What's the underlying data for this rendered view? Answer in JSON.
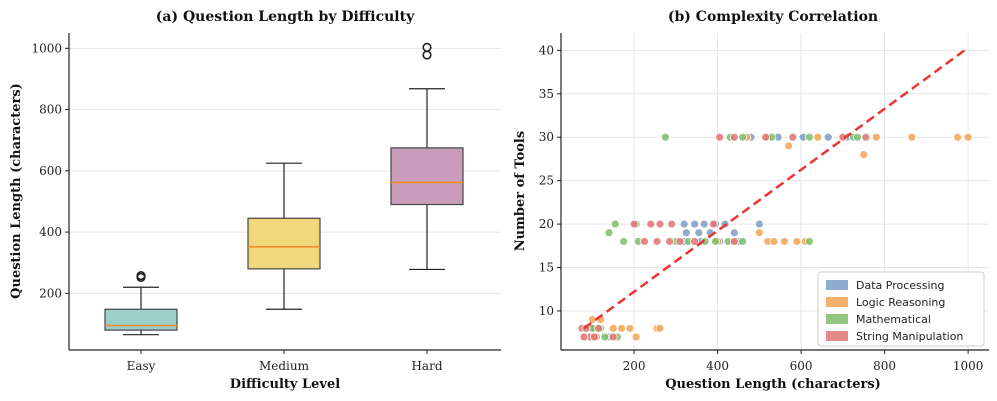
{
  "chart_data": [
    {
      "type": "box",
      "title": "(a) Question Length by Difficulty",
      "xlabel": "Difficulty Level",
      "ylabel": "Question Length (characters)",
      "ylim": [
        15,
        1050
      ],
      "yticks": [
        200,
        400,
        600,
        800,
        1000
      ],
      "grid": true,
      "categories": [
        "Easy",
        "Medium",
        "Hard"
      ],
      "boxes": [
        {
          "name": "Easy",
          "whisker_low": 65,
          "q1": 80,
          "median": 95,
          "q3": 148,
          "whisker_high": 220,
          "outliers": [
            252,
            258
          ],
          "color": "#9ecfc8"
        },
        {
          "name": "Medium",
          "whisker_low": 148,
          "q1": 280,
          "median": 352,
          "q3": 445,
          "whisker_high": 625,
          "outliers": [],
          "color": "#f2d77c"
        },
        {
          "name": "Hard",
          "whisker_low": 278,
          "q1": 490,
          "median": 562,
          "q3": 675,
          "whisker_high": 868,
          "outliers": [
            978,
            1003
          ],
          "color": "#c99cbb"
        }
      ]
    },
    {
      "type": "scatter",
      "title": "(b) Complexity Correlation",
      "xlabel": "Question Length (characters)",
      "ylabel": "Number of Tools",
      "xlim": [
        25,
        1050
      ],
      "ylim": [
        5.5,
        42
      ],
      "xticks": [
        200,
        400,
        600,
        800,
        1000
      ],
      "yticks": [
        10,
        15,
        20,
        25,
        30,
        35,
        40
      ],
      "grid": true,
      "legend_position": "bottom-right",
      "trend_line": {
        "x": [
          80,
          1000
        ],
        "y": [
          8.0,
          40.3
        ],
        "color": "#ee3333"
      },
      "series": [
        {
          "name": "Data Processing",
          "color": "#7b9cc6",
          "points": [
            [
              320,
              20
            ],
            [
              345,
              20
            ],
            [
              368,
              20
            ],
            [
              395,
              20
            ],
            [
              418,
              20
            ],
            [
              500,
              20
            ],
            [
              325,
              19
            ],
            [
              355,
              19
            ],
            [
              382,
              19
            ],
            [
              440,
              19
            ],
            [
              320,
              18
            ],
            [
              360,
              18
            ],
            [
              405,
              18
            ],
            [
              450,
              18
            ],
            [
              605,
              30
            ],
            [
              665,
              30
            ],
            [
              710,
              30
            ],
            [
              545,
              30
            ],
            [
              480,
              30
            ],
            [
              95,
              8
            ],
            [
              140,
              7
            ]
          ]
        },
        {
          "name": "Logic Reasoning",
          "color": "#f4a356",
          "points": [
            [
              780,
              30
            ],
            [
              865,
              30
            ],
            [
              975,
              30
            ],
            [
              1000,
              30
            ],
            [
              520,
              30
            ],
            [
              470,
              30
            ],
            [
              640,
              30
            ],
            [
              500,
              19
            ],
            [
              560,
              18
            ],
            [
              590,
              18
            ],
            [
              520,
              18
            ],
            [
              535,
              18
            ],
            [
              610,
              18
            ],
            [
              750,
              28
            ],
            [
              570,
              29
            ],
            [
              435,
              18
            ],
            [
              400,
              18
            ],
            [
              100,
              9
            ],
            [
              120,
              9
            ],
            [
              150,
              8
            ],
            [
              170,
              8
            ],
            [
              190,
              8
            ],
            [
              255,
              8
            ],
            [
              262,
              8
            ],
            [
              110,
              7
            ],
            [
              205,
              7
            ]
          ]
        },
        {
          "name": "Mathematical",
          "color": "#7fbd6c",
          "points": [
            [
              275,
              30
            ],
            [
              430,
              30
            ],
            [
              460,
              30
            ],
            [
              530,
              30
            ],
            [
              620,
              30
            ],
            [
              725,
              30
            ],
            [
              735,
              30
            ],
            [
              155,
              20
            ],
            [
              205,
              20
            ],
            [
              140,
              19
            ],
            [
              175,
              18
            ],
            [
              210,
              18
            ],
            [
              300,
              18
            ],
            [
              330,
              18
            ],
            [
              370,
              18
            ],
            [
              395,
              18
            ],
            [
              425,
              18
            ],
            [
              460,
              18
            ],
            [
              620,
              18
            ],
            [
              105,
              8
            ],
            [
              120,
              8
            ],
            [
              130,
              7
            ],
            [
              160,
              7
            ],
            [
              100,
              8
            ]
          ]
        },
        {
          "name": "String Manipulation",
          "color": "#e07373",
          "points": [
            [
              405,
              30
            ],
            [
              440,
              30
            ],
            [
              515,
              30
            ],
            [
              580,
              30
            ],
            [
              700,
              30
            ],
            [
              755,
              30
            ],
            [
              200,
              20
            ],
            [
              240,
              20
            ],
            [
              262,
              20
            ],
            [
              290,
              20
            ],
            [
              390,
              20
            ],
            [
              225,
              18
            ],
            [
              255,
              18
            ],
            [
              285,
              18
            ],
            [
              310,
              18
            ],
            [
              345,
              18
            ],
            [
              440,
              18
            ],
            [
              75,
              8
            ],
            [
              85,
              8
            ],
            [
              95,
              7
            ],
            [
              105,
              7
            ],
            [
              115,
              8
            ],
            [
              80,
              7
            ],
            [
              150,
              7
            ]
          ]
        }
      ]
    }
  ]
}
